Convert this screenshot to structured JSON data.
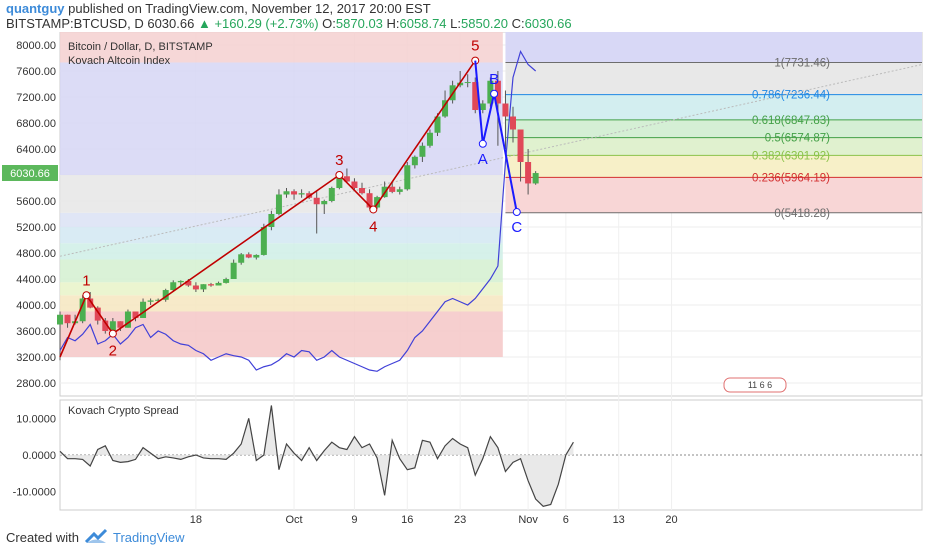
{
  "header": {
    "author": "quantguy",
    "published_text": "published on TradingView.com, November 12, 2017 20:00 EST",
    "symbol": "BITSTAMP:BTCUSD, D",
    "last": "6030.66",
    "change": "+160.29 (+2.73%)",
    "o_label": "O:",
    "o": "5870.03",
    "h_label": "H:",
    "h": "6058.74",
    "l_label": "L:",
    "l": "5850.20",
    "c_label": "C:",
    "c": "6030.66"
  },
  "footer": {
    "created_with": "Created with",
    "brand": "TradingView"
  },
  "colors": {
    "bull": "#4caf50",
    "bear": "#e04858",
    "elliott": "#c00000",
    "abc": "#1a1aff",
    "indicator": "#4040d8",
    "spread": "#444444"
  },
  "chart_data": [
    {
      "type": "candlestick",
      "title": "Bitcoin / Dollar, D, BITSTAMP",
      "indicator_label": "Kovach Altcoin Index",
      "y_ticks": [
        "8000.00",
        "7600.00",
        "7200.00",
        "6800.00",
        "6400.00",
        "6000.00",
        "5600.00",
        "5200.00",
        "4800.00",
        "4400.00",
        "4000.00",
        "3600.00",
        "3200.00",
        "2800.00"
      ],
      "ylim": [
        2600,
        8200
      ],
      "price_label": "6030.66",
      "x_ticks": [
        {
          "label": "18",
          "x": 18
        },
        {
          "label": "Oct",
          "x": 31
        },
        {
          "label": "9",
          "x": 39
        },
        {
          "label": "16",
          "x": 46
        },
        {
          "label": "23",
          "x": 53
        },
        {
          "label": "Nov",
          "x": 62
        },
        {
          "label": "6",
          "x": 67
        },
        {
          "label": "13",
          "x": 74
        },
        {
          "label": "20",
          "x": 81
        }
      ],
      "candles": [
        [
          3700,
          3900,
          3150,
          3850
        ],
        [
          3850,
          3850,
          3650,
          3720
        ],
        [
          3720,
          3850,
          3700,
          3750
        ],
        [
          3750,
          4150,
          3720,
          4100
        ],
        [
          4100,
          4200,
          3950,
          3960
        ],
        [
          3960,
          3980,
          3700,
          3760
        ],
        [
          3760,
          3800,
          3560,
          3600
        ],
        [
          3600,
          3800,
          3600,
          3750
        ],
        [
          3750,
          3750,
          3600,
          3650
        ],
        [
          3650,
          3930,
          3650,
          3900
        ],
        [
          3900,
          3900,
          3750,
          3800
        ],
        [
          3800,
          4100,
          3800,
          4050
        ],
        [
          4050,
          4100,
          4000,
          4070
        ],
        [
          4070,
          4100,
          4050,
          4080
        ],
        [
          4080,
          4250,
          4050,
          4230
        ],
        [
          4230,
          4380,
          4200,
          4350
        ],
        [
          4350,
          4380,
          4300,
          4370
        ],
        [
          4370,
          4400,
          4280,
          4300
        ],
        [
          4300,
          4350,
          4200,
          4240
        ],
        [
          4240,
          4320,
          4200,
          4320
        ],
        [
          4320,
          4340,
          4280,
          4300
        ],
        [
          4300,
          4360,
          4300,
          4340
        ],
        [
          4340,
          4420,
          4330,
          4400
        ],
        [
          4400,
          4700,
          4400,
          4650
        ],
        [
          4650,
          4800,
          4620,
          4780
        ],
        [
          4780,
          4810,
          4720,
          4730
        ],
        [
          4730,
          4780,
          4700,
          4770
        ],
        [
          4770,
          5250,
          4760,
          5200
        ],
        [
          5200,
          5450,
          5150,
          5400
        ],
        [
          5400,
          5780,
          5380,
          5700
        ],
        [
          5700,
          5800,
          5650,
          5750
        ],
        [
          5750,
          5780,
          5620,
          5700
        ],
        [
          5700,
          5780,
          5650,
          5720
        ],
        [
          5720,
          5750,
          5630,
          5650
        ],
        [
          5650,
          5750,
          5100,
          5550
        ],
        [
          5550,
          5620,
          5400,
          5600
        ],
        [
          5600,
          5820,
          5580,
          5800
        ],
        [
          5800,
          6000,
          5780,
          5980
        ],
        [
          5980,
          6100,
          5880,
          5900
        ],
        [
          5900,
          5950,
          5780,
          5800
        ],
        [
          5800,
          5880,
          5700,
          5720
        ],
        [
          5720,
          5780,
          5480,
          5500
        ],
        [
          5500,
          5680,
          5480,
          5660
        ],
        [
          5660,
          5900,
          5650,
          5820
        ],
        [
          5820,
          5900,
          5720,
          5740
        ],
        [
          5740,
          5820,
          5700,
          5780
        ],
        [
          5780,
          6200,
          5760,
          6150
        ],
        [
          6150,
          6300,
          6100,
          6280
        ],
        [
          6280,
          6500,
          6200,
          6450
        ],
        [
          6450,
          6700,
          6420,
          6650
        ],
        [
          6650,
          6950,
          6600,
          6900
        ],
        [
          6900,
          7300,
          6880,
          7150
        ],
        [
          7150,
          7450,
          7100,
          7380
        ],
        [
          7380,
          7600,
          7350,
          7420
        ],
        [
          7420,
          7550,
          7350,
          7430
        ],
        [
          7430,
          7500,
          6950,
          7000
        ],
        [
          7000,
          7150,
          6950,
          7100
        ],
        [
          7100,
          7500,
          7050,
          7450
        ],
        [
          7450,
          7600,
          6450,
          7100
        ],
        [
          7100,
          7300,
          6400,
          6900
        ],
        [
          6900,
          7050,
          6500,
          6700
        ],
        [
          6700,
          6700,
          5900,
          6200
        ],
        [
          6200,
          6400,
          5700,
          5870
        ],
        [
          5870,
          6060,
          5850,
          6030
        ]
      ],
      "altcoin_index": [
        3300,
        3500,
        3450,
        3550,
        3700,
        3400,
        3450,
        3550,
        3400,
        3500,
        3650,
        3700,
        3500,
        3600,
        3550,
        3450,
        3400,
        3380,
        3300,
        3250,
        3150,
        3200,
        3250,
        3220,
        3200,
        3150,
        3000,
        3050,
        3080,
        3150,
        3250,
        3200,
        3300,
        3280,
        3150,
        3200,
        3300,
        3200,
        3150,
        3100,
        3050,
        3000,
        2980,
        3050,
        3100,
        3150,
        3300,
        3500,
        3600,
        3750,
        3900,
        4050,
        4100,
        4050,
        4000,
        4100,
        4250,
        4400,
        4600,
        6200,
        7500,
        7900,
        7700,
        7600
      ],
      "fibonacci": [
        {
          "label": "0(5418.28)",
          "value": 5418.28,
          "color": "#6d6d6d"
        },
        {
          "label": "0.236(5964.19)",
          "value": 5964.19,
          "color": "#d32f2f"
        },
        {
          "label": "0.382(6301.92)",
          "value": 6301.92,
          "color": "#8bc34a"
        },
        {
          "label": "0.5(6574.87)",
          "value": 6574.87,
          "color": "#43a047"
        },
        {
          "label": "0.618(6847.83)",
          "value": 6847.83,
          "color": "#43a047"
        },
        {
          "label": "0.786(7236.44)",
          "value": 7236.44,
          "color": "#1e88e5"
        },
        {
          "label": "1(7731.46)",
          "value": 7731.46,
          "color": "#6d6d6d"
        }
      ],
      "elliott": [
        {
          "label": "1",
          "x": 3.5,
          "value": 4150
        },
        {
          "label": "2",
          "x": 7,
          "value": 3560
        },
        {
          "label": "3",
          "x": 37,
          "value": 6000
        },
        {
          "label": "4",
          "x": 41.5,
          "value": 5470
        },
        {
          "label": "5",
          "x": 55,
          "value": 7760
        }
      ],
      "abc": [
        {
          "label": "A",
          "x": 56,
          "value": 6480
        },
        {
          "label": "B",
          "x": 57.5,
          "value": 7250
        },
        {
          "label": "C",
          "x": 60.5,
          "value": 5430
        }
      ],
      "legend_badge": "11 6 6"
    },
    {
      "type": "line",
      "title": "Kovach Crypto Spread",
      "y_ticks": [
        "10.0000",
        "0.0000",
        "-10.0000"
      ],
      "ylim": [
        -15,
        15
      ],
      "values": [
        1,
        -1,
        -1,
        -1.2,
        -3,
        1.5,
        2.5,
        -1.5,
        -2,
        -1.8,
        -1.2,
        2,
        0.5,
        -1,
        -0.5,
        -0.8,
        -1.2,
        -0.5,
        0,
        -0.8,
        -1,
        -1,
        -1.2,
        0.5,
        3,
        10,
        -1.5,
        0,
        13.5,
        -4,
        3,
        0.5,
        -1.5,
        2,
        -1.5,
        1.2,
        3.5,
        2,
        1.5,
        5,
        2,
        3,
        -0.8,
        -11,
        4,
        -1,
        -4,
        -3.5,
        4,
        3.5,
        -1,
        2.5,
        4.5,
        3,
        2,
        -5.5,
        -1,
        5,
        2,
        -4.5,
        -2,
        -1,
        -7,
        -12,
        -14,
        -13.5,
        -8,
        0,
        3.5
      ]
    }
  ]
}
